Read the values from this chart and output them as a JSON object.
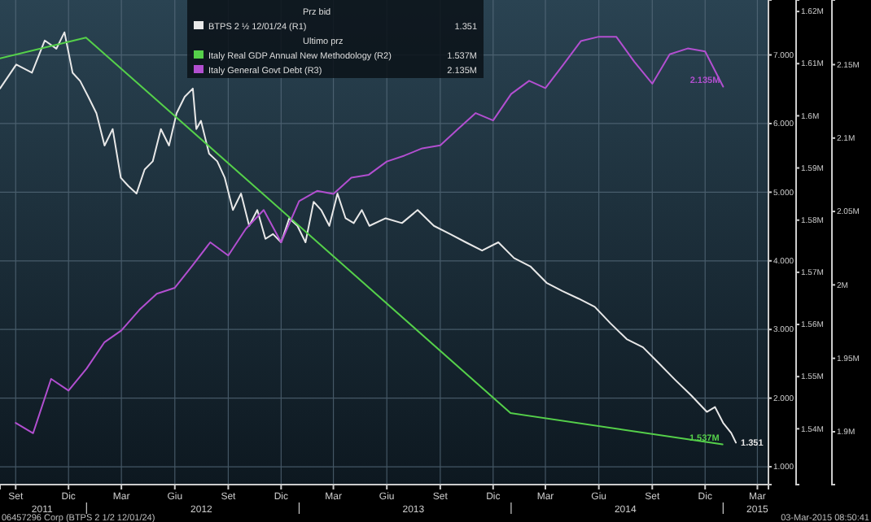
{
  "chart_data": {
    "type": "line",
    "legend_title": "Prz bid",
    "legend": "top left",
    "grid": true,
    "annotations": [
      "Ultimo prz",
      "06457296 Corp (BTPS 2 1/2 12/01/24)",
      "03-Mar-2015 08:50:41",
      "2011",
      "2012",
      "2013",
      "2014",
      "2015"
    ],
    "xlim": [
      "2011-08-05",
      "2015-03-20"
    ],
    "xticks": [
      {
        "value": "2011-09-01",
        "label": "Set"
      },
      {
        "value": "2011-12-01",
        "label": "Dic"
      },
      {
        "value": "2012-03-01",
        "label": "Mar"
      },
      {
        "value": "2012-06-01",
        "label": "Giu"
      },
      {
        "value": "2012-09-01",
        "label": "Set"
      },
      {
        "value": "2012-12-01",
        "label": "Dic"
      },
      {
        "value": "2013-03-01",
        "label": "Mar"
      },
      {
        "value": "2013-06-01",
        "label": "Giu"
      },
      {
        "value": "2013-09-01",
        "label": "Set"
      },
      {
        "value": "2013-12-01",
        "label": "Dic"
      },
      {
        "value": "2014-03-01",
        "label": "Mar"
      },
      {
        "value": "2014-06-01",
        "label": "Giu"
      },
      {
        "value": "2014-09-01",
        "label": "Set"
      },
      {
        "value": "2014-12-01",
        "label": "Dic"
      },
      {
        "value": "2015-03-01",
        "label": "Mar"
      }
    ],
    "ylim": [
      0.74,
      7.8
    ],
    "yticks": [
      {
        "value": 1,
        "label": "1.000"
      },
      {
        "value": 2,
        "label": "2.000"
      },
      {
        "value": 3,
        "label": "3.000"
      },
      {
        "value": 4,
        "label": "4.000"
      },
      {
        "value": 5,
        "label": "5.000"
      },
      {
        "value": 6,
        "label": "6.000"
      },
      {
        "value": 7,
        "label": "7.000"
      }
    ],
    "y2lim": [
      1.5293,
      1.6222
    ],
    "y2ticks": [
      {
        "value": 1.54,
        "label": "1.54M"
      },
      {
        "value": 1.55,
        "label": "1.55M"
      },
      {
        "value": 1.56,
        "label": "1.56M"
      },
      {
        "value": 1.57,
        "label": "1.57M"
      },
      {
        "value": 1.58,
        "label": "1.58M"
      },
      {
        "value": 1.59,
        "label": "1.59M"
      },
      {
        "value": 1.6,
        "label": "1.6M"
      },
      {
        "value": 1.61,
        "label": "1.61M"
      },
      {
        "value": 1.62,
        "label": "1.62M"
      }
    ],
    "y3lim": [
      1.864,
      2.194
    ],
    "y3ticks": [
      {
        "value": 1.9,
        "label": "1.9M"
      },
      {
        "value": 1.95,
        "label": "1.95M"
      },
      {
        "value": 2,
        "label": "2M"
      },
      {
        "value": 2.05,
        "label": "2.05M"
      },
      {
        "value": 2.1,
        "label": "2.1M"
      },
      {
        "value": 2.15,
        "label": "2.15M"
      }
    ],
    "series": [
      {
        "name": "BTPS 2 ½ 12/01/24 (R1)",
        "color": "#e8e8e8",
        "axis": "y",
        "x": [
          "2011-08-05",
          "2011-09-02",
          "2011-09-29",
          "2011-10-21",
          "2011-11-10",
          "2011-11-24",
          "2011-12-08",
          "2011-12-21",
          "2012-01-04",
          "2012-01-18",
          "2012-02-01",
          "2012-02-15",
          "2012-02-29",
          "2012-03-13",
          "2012-03-27",
          "2012-04-10",
          "2012-04-24",
          "2012-05-08",
          "2012-05-22",
          "2012-06-04",
          "2012-06-18",
          "2012-07-02",
          "2012-07-08",
          "2012-07-16",
          "2012-07-30",
          "2012-08-13",
          "2012-08-26",
          "2012-09-09",
          "2012-09-23",
          "2012-10-07",
          "2012-10-21",
          "2012-11-04",
          "2012-11-17",
          "2012-12-01",
          "2012-12-15",
          "2012-12-29",
          "2013-01-12",
          "2013-01-26",
          "2013-02-08",
          "2013-02-22",
          "2013-03-08",
          "2013-03-22",
          "2013-04-05",
          "2013-04-19",
          "2013-05-02",
          "2013-05-30",
          "2013-06-27",
          "2013-07-24",
          "2013-08-21",
          "2013-09-18",
          "2013-10-15",
          "2013-11-12",
          "2013-12-10",
          "2014-01-06",
          "2014-02-03",
          "2014-03-03",
          "2014-03-30",
          "2014-04-27",
          "2014-05-25",
          "2014-06-21",
          "2014-07-19",
          "2014-08-16",
          "2014-09-12",
          "2014-10-10",
          "2014-11-07",
          "2014-12-04",
          "2014-12-18",
          "2015-01-01",
          "2015-01-15",
          "2015-01-23"
        ],
        "values": [
          6.51,
          6.86,
          6.74,
          7.21,
          7.09,
          7.33,
          6.74,
          6.62,
          6.39,
          6.15,
          5.68,
          5.92,
          5.21,
          5.09,
          4.98,
          5.33,
          5.45,
          5.92,
          5.68,
          6.15,
          6.39,
          6.51,
          5.92,
          6.04,
          5.56,
          5.45,
          5.21,
          4.74,
          4.98,
          4.51,
          4.74,
          4.32,
          4.39,
          4.27,
          4.62,
          4.51,
          4.27,
          4.86,
          4.74,
          4.51,
          4.98,
          4.62,
          4.55,
          4.74,
          4.51,
          4.62,
          4.55,
          4.74,
          4.51,
          4.39,
          4.27,
          4.15,
          4.27,
          4.04,
          3.92,
          3.68,
          3.56,
          3.45,
          3.33,
          3.09,
          2.86,
          2.74,
          2.51,
          2.27,
          2.04,
          1.8,
          1.87,
          1.64,
          1.49,
          1.351
        ],
        "value_labels": [
          null,
          null,
          null,
          null,
          null,
          null,
          null,
          null,
          null,
          null,
          null,
          null,
          null,
          null,
          null,
          null,
          null,
          null,
          null,
          null,
          null,
          null,
          null,
          null,
          null,
          null,
          null,
          null,
          null,
          null,
          null,
          null,
          null,
          null,
          null,
          null,
          null,
          null,
          null,
          null,
          null,
          null,
          null,
          null,
          null,
          null,
          null,
          null,
          null,
          null,
          null,
          null,
          null,
          null,
          null,
          null,
          null,
          null,
          null,
          null,
          null,
          null,
          null,
          null,
          null,
          null,
          null,
          null,
          null,
          "1.351"
        ]
      },
      {
        "name": "Italy Real GDP Annual New Methodology (R2)",
        "color": "#55d04a",
        "axis": "y2",
        "x": [
          "2011-08-05",
          "2011-12-31",
          "2012-12-31",
          "2013-12-31",
          "2014-12-31"
        ],
        "values": [
          1.611,
          1.615,
          1.579,
          1.543,
          1.537
        ],
        "value_labels": [
          null,
          null,
          null,
          null,
          "1.537M"
        ]
      },
      {
        "name": "Italy General Govt Debt (R3)",
        "color": "#b24fd0",
        "axis": "y3",
        "x": [
          "2011-09",
          "2011-10",
          "2011-11",
          "2011-12",
          "2012-01",
          "2012-02",
          "2012-03",
          "2012-04",
          "2012-05",
          "2012-06",
          "2012-07",
          "2012-08",
          "2012-09",
          "2012-10",
          "2012-11",
          "2012-12",
          "2013-01",
          "2013-02",
          "2013-03",
          "2013-04",
          "2013-05",
          "2013-06",
          "2013-07",
          "2013-08",
          "2013-09",
          "2013-10",
          "2013-11",
          "2013-12",
          "2014-01",
          "2014-02",
          "2014-03",
          "2014-04",
          "2014-05",
          "2014-06",
          "2014-07",
          "2014-08",
          "2014-09",
          "2014-10",
          "2014-11",
          "2014-12",
          "2015-01"
        ],
        "values": [
          1.906,
          1.899,
          1.936,
          1.928,
          1.943,
          1.961,
          1.969,
          1.983,
          1.994,
          1.998,
          2.013,
          2.029,
          2.02,
          2.038,
          2.051,
          2.029,
          2.057,
          2.064,
          2.062,
          2.073,
          2.075,
          2.084,
          2.088,
          2.093,
          2.095,
          2.106,
          2.117,
          2.112,
          2.13,
          2.139,
          2.134,
          2.15,
          2.166,
          2.169,
          2.169,
          2.152,
          2.137,
          2.157,
          2.161,
          2.159,
          2.135
        ],
        "value_labels": [
          null,
          null,
          null,
          null,
          null,
          null,
          null,
          null,
          null,
          null,
          null,
          null,
          null,
          null,
          null,
          null,
          null,
          null,
          null,
          null,
          null,
          null,
          null,
          null,
          null,
          null,
          null,
          null,
          null,
          null,
          null,
          null,
          null,
          null,
          null,
          null,
          null,
          null,
          null,
          null,
          "2.135M"
        ]
      }
    ]
  }
}
